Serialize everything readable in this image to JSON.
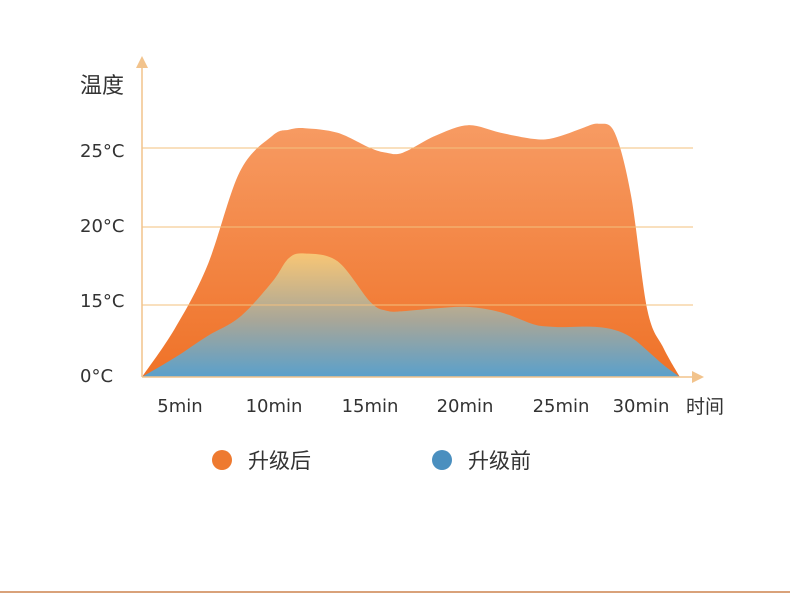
{
  "chart_data": {
    "type": "area",
    "ylabel": "温度",
    "xlabel": "时间",
    "y_ticks": [
      "0°C",
      "15°C",
      "20°C",
      "25°C"
    ],
    "x_ticks": [
      "5min",
      "10min",
      "15min",
      "20min",
      "25min",
      "30min"
    ],
    "x": [
      0,
      2,
      4,
      6,
      8,
      9,
      10,
      12,
      14,
      15,
      16,
      18,
      20,
      22,
      24,
      25,
      26,
      27,
      28,
      29,
      30,
      31,
      32,
      33
    ],
    "series": [
      {
        "name": "升级后",
        "color": "#ee7a30",
        "values": [
          0,
          10,
          17.5,
          23.5,
          25.8,
          26.2,
          26.3,
          26.0,
          25.0,
          24.7,
          24.7,
          25.8,
          26.5,
          26.0,
          25.6,
          25.6,
          25.9,
          26.3,
          26.6,
          26.0,
          22.0,
          14.0,
          6.0,
          0
        ]
      },
      {
        "name": "升级前",
        "color": "#4a8fbf",
        "values": [
          0,
          4,
          8.5,
          12.5,
          16.5,
          18.0,
          18.3,
          17.8,
          15.2,
          13.8,
          13.7,
          14.3,
          14.6,
          13.5,
          11.0,
          10.5,
          10.4,
          10.5,
          10.4,
          9.8,
          8.3,
          5.5,
          2.5,
          0
        ]
      }
    ],
    "legend": [
      "升级后",
      "升级前"
    ],
    "legend_placement": "bottom",
    "grid": "horizontal"
  }
}
